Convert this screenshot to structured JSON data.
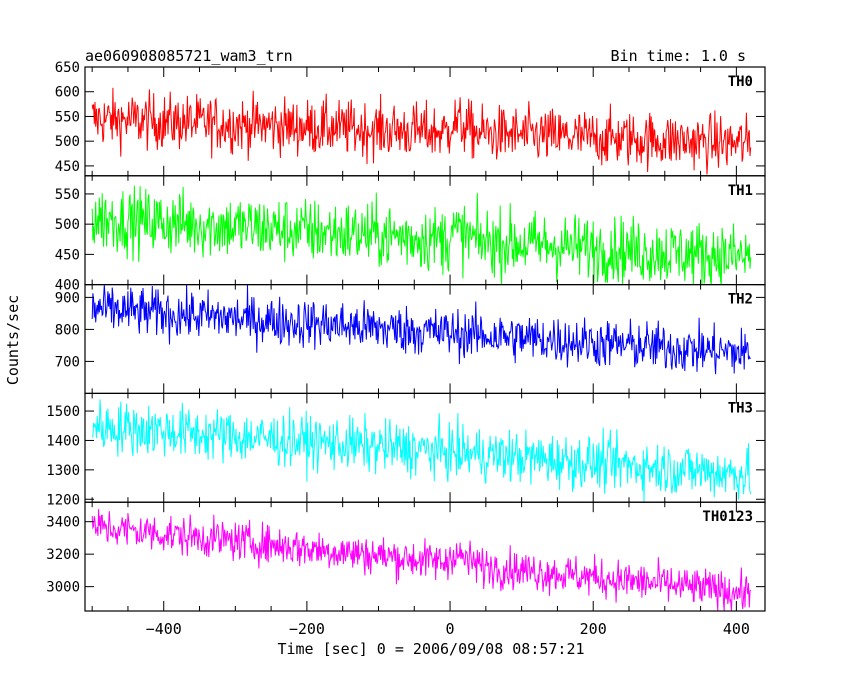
{
  "header": {
    "title": "ae060908085721_wam3_trn",
    "bin_time": "Bin time: 1.0 s"
  },
  "axes": {
    "xlabel": "Time [sec] 0 = 2006/09/08 08:57:21",
    "ylabel": "Counts/sec",
    "xlim": [
      -510,
      440
    ],
    "xticks": [
      -400,
      -200,
      0,
      200,
      400
    ]
  },
  "chart_data": {
    "type": "line",
    "x_range": [
      -500,
      420
    ],
    "bin_time_s": 1.0,
    "panels": [
      {
        "name": "TH0",
        "color": "#ff0000",
        "ylim": [
          430,
          650
        ],
        "yticks": [
          450,
          500,
          550,
          600,
          650
        ],
        "start": 545,
        "end": 495,
        "noise": 28,
        "step_at": 0,
        "step": 25,
        "bump": 0
      },
      {
        "name": "TH1",
        "color": "#00ff00",
        "ylim": [
          400,
          580
        ],
        "yticks": [
          400,
          450,
          500,
          550
        ],
        "start": 510,
        "end": 445,
        "noise": 27,
        "step_at": 0,
        "step": 15,
        "bump": 0
      },
      {
        "name": "TH2",
        "color": "#0000ff",
        "ylim": [
          600,
          940
        ],
        "yticks": [
          700,
          800,
          900
        ],
        "start": 865,
        "end": 725,
        "noise": 38,
        "step_at": 0,
        "step": 0,
        "bump": 0
      },
      {
        "name": "TH3",
        "color": "#00ffff",
        "ylim": [
          1190,
          1560
        ],
        "yticks": [
          1200,
          1300,
          1400,
          1500
        ],
        "start": 1450,
        "end": 1285,
        "noise": 45,
        "step_at": 0,
        "step": 0,
        "bump": 0
      },
      {
        "name": "TH0123",
        "color": "#ff00ff",
        "ylim": [
          2850,
          3520
        ],
        "yticks": [
          3000,
          3200,
          3400
        ],
        "start": 3370,
        "end": 2960,
        "noise": 60,
        "step_at": 0,
        "step": 70,
        "bump": 0
      }
    ]
  }
}
